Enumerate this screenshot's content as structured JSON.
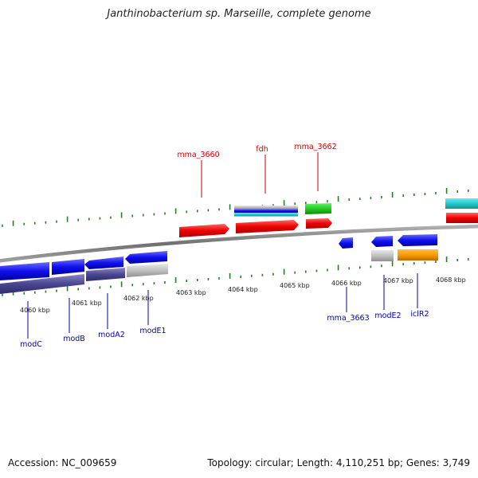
{
  "title": "Janthinobacterium sp. Marseille, complete genome",
  "accession": "Accession: NC_009659",
  "summary": "Topology: circular; Length: 4,110,251 bp; Genes: 3,749",
  "colors": {
    "forward_label": "#cc0000",
    "reverse_label": "#0000aa",
    "tick": "#2a7a2a",
    "backbone": "#808080"
  },
  "scale_ticks": [
    {
      "label": "4060 kbp"
    },
    {
      "label": "4061 kbp"
    },
    {
      "label": "4062 kbp"
    },
    {
      "label": "4063 kbp"
    },
    {
      "label": "4064 kbp"
    },
    {
      "label": "4065 kbp"
    },
    {
      "label": "4066 kbp"
    },
    {
      "label": "4067 kbp"
    },
    {
      "label": "4068 kbp"
    }
  ],
  "forward_labels": [
    {
      "text": "mma_3660"
    },
    {
      "text": "fdh"
    },
    {
      "text": "mma_3662"
    }
  ],
  "reverse_labels": [
    {
      "text": "modC"
    },
    {
      "text": "modB"
    },
    {
      "text": "modA2"
    },
    {
      "text": "modE1"
    },
    {
      "text": "mma_3663"
    },
    {
      "text": "modE2"
    },
    {
      "text": "iclR2"
    }
  ]
}
